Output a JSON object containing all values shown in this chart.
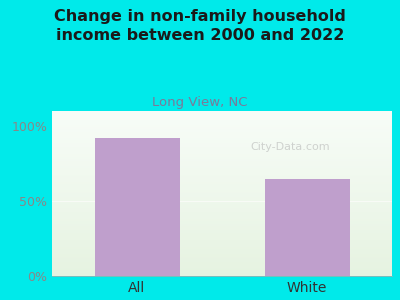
{
  "title": "Change in non-family household\nincome between 2000 and 2022",
  "subtitle": "Long View, NC",
  "categories": [
    "All",
    "White"
  ],
  "values": [
    92,
    65
  ],
  "bar_color": "#bf9fcc",
  "title_color": "#1a1a1a",
  "subtitle_color": "#7a7a9a",
  "background_color": "#00eaea",
  "yticks": [
    0,
    50,
    100
  ],
  "ytick_labels": [
    "0%",
    "50%",
    "100%"
  ],
  "ylim": [
    0,
    110
  ],
  "figsize": [
    4.0,
    3.0
  ],
  "dpi": 100
}
